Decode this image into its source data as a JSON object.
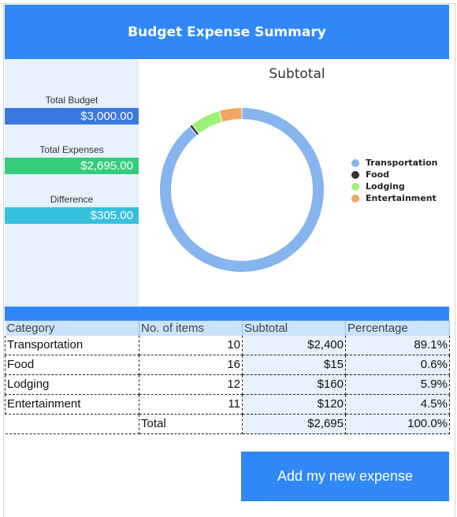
{
  "header": {
    "title": "Budget Expense Summary"
  },
  "metrics": [
    {
      "label": "Total Budget",
      "value": "$3,000.00",
      "color": "#3a78e0"
    },
    {
      "label": "Total Expenses",
      "value": "$2,695.00",
      "color": "#35cc7c"
    },
    {
      "label": "Difference",
      "value": "$305.00",
      "color": "#36c0dc"
    }
  ],
  "chart_data": {
    "type": "pie",
    "title": "Subtotal",
    "donut": true,
    "legend_position": "right",
    "categories": [
      "Transportation",
      "Food",
      "Lodging",
      "Entertainment"
    ],
    "values": [
      2400,
      15,
      160,
      120
    ],
    "colors": [
      "#85b4ee",
      "#333333",
      "#9ef07a",
      "#f2a55e"
    ]
  },
  "table": {
    "columns": [
      "Category",
      "No. of items",
      "Subtotal",
      "Percentage"
    ],
    "rows": [
      {
        "category": "Transportation",
        "items": "10",
        "subtotal": "$2,400",
        "percentage": "89.1%"
      },
      {
        "category": "Food",
        "items": "16",
        "subtotal": "$15",
        "percentage": "0.6%"
      },
      {
        "category": "Lodging",
        "items": "12",
        "subtotal": "$160",
        "percentage": "5.9%"
      },
      {
        "category": "Entertainment",
        "items": "11",
        "subtotal": "$120",
        "percentage": "4.5%"
      }
    ],
    "total": {
      "label": "Total",
      "subtotal": "$2,695",
      "percentage": "100.0%"
    }
  },
  "button": {
    "label": "Add my new expense"
  }
}
